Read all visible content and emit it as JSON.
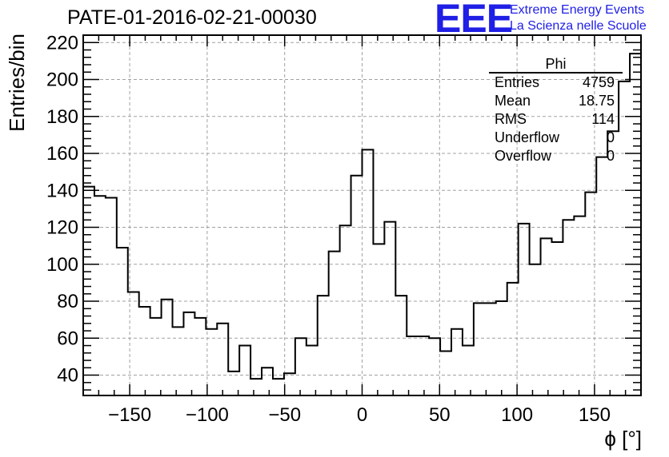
{
  "title": "PATE-01-2016-02-21-00030",
  "logo": {
    "mark": "EEE",
    "line1": "Extreme Energy Events",
    "line2": "La Scienza nelle Scuole",
    "color": "#1f1fe6"
  },
  "stats": {
    "name": "Phi",
    "rows": [
      {
        "label": "Entries",
        "value": "4759"
      },
      {
        "label": "Mean",
        "value": "18.75"
      },
      {
        "label": "RMS",
        "value": "114"
      },
      {
        "label": "Underflow",
        "value": "0"
      },
      {
        "label": "Overflow",
        "value": "0"
      }
    ]
  },
  "chart_data": {
    "type": "histogram",
    "title": "PATE-01-2016-02-21-00030",
    "xlabel": "ϕ [°]",
    "ylabel": "Entries/bin",
    "xlim": [
      -180,
      180
    ],
    "ylim": [
      29,
      224
    ],
    "bin_width": 7.2,
    "grid": true,
    "xticks": [
      -150,
      -100,
      -50,
      0,
      50,
      100,
      150
    ],
    "yticks": [
      40,
      60,
      80,
      100,
      120,
      140,
      160,
      180,
      200,
      220
    ],
    "x_bin_edges_start": -180,
    "values": [
      142,
      137,
      136,
      109,
      85,
      77,
      71,
      81,
      66,
      74,
      71,
      65,
      68,
      42,
      56,
      38,
      44,
      38,
      41,
      60,
      56,
      83,
      107,
      121,
      148,
      162,
      111,
      123,
      83,
      61,
      61,
      60,
      53,
      65,
      56,
      79,
      79,
      80,
      90,
      122,
      100,
      114,
      112,
      124,
      126,
      139,
      158,
      172,
      199,
      214
    ]
  }
}
